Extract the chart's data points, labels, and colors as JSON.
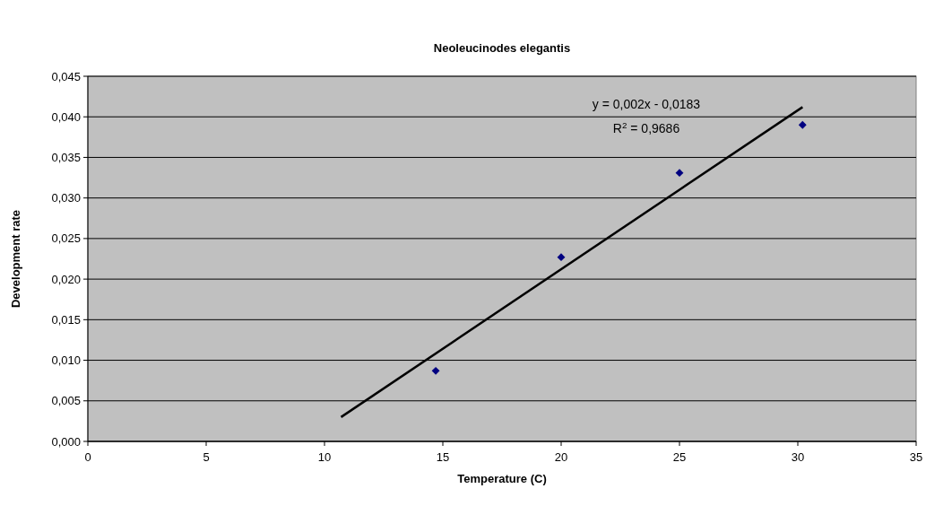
{
  "chart_data": {
    "type": "scatter",
    "title": "Neoleucinodes elegantis",
    "xlabel": "Temperature (C)",
    "ylabel": "Development rate",
    "annotations": [
      "y = 0,002x - 0,0183",
      "R$^{2}$ = 0,9686"
    ],
    "series": [
      {
        "color": "#000080",
        "x": [
          14.7,
          20.0,
          25.0,
          30.2
        ],
        "values": [
          0.0087,
          0.0227,
          0.0331,
          0.039
        ],
        "marker": "diamond"
      },
      {
        "type": "line",
        "color": "#000000",
        "x": [
          10.7,
          30.2
        ],
        "values": [
          0.003,
          0.0412
        ],
        "marker": "none",
        "line_style": "solid"
      }
    ],
    "xlim": [
      0,
      35
    ],
    "xticks": [
      0,
      5,
      10,
      15,
      20,
      25,
      30,
      35
    ],
    "ylim": [
      0,
      0.045
    ],
    "yticks": [
      {
        "value": 0,
        "label": "0,000"
      },
      {
        "value": 0.005,
        "label": "0,005"
      },
      {
        "value": 0.01,
        "label": "0,010"
      },
      {
        "value": 0.015,
        "label": "0,015"
      },
      {
        "value": 0.02,
        "label": "0,020"
      },
      {
        "value": 0.025,
        "label": "0,025"
      },
      {
        "value": 0.03,
        "label": "0,030"
      },
      {
        "value": 0.035,
        "label": "0,035"
      },
      {
        "value": 0.04,
        "label": "0,040"
      },
      {
        "value": 0.045,
        "label": "0,045"
      }
    ],
    "grid": "y"
  }
}
